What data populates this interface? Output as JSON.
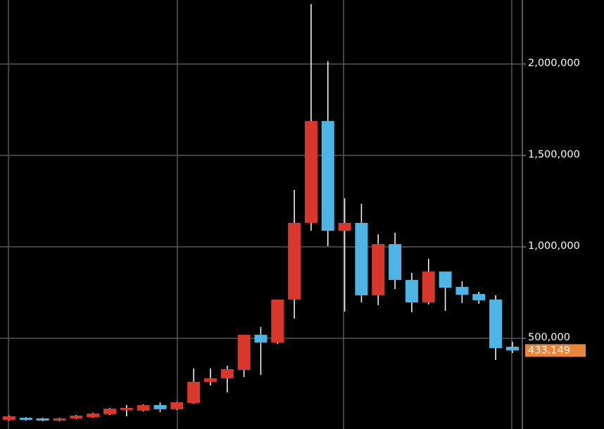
{
  "chart_data": {
    "type": "candlestick",
    "open": [
      54000,
      65000,
      62000,
      50000,
      62000,
      69000,
      85000,
      108000,
      104000,
      135000,
      112000,
      146000,
      262000,
      281000,
      327000,
      519000,
      477000,
      712000,
      1131000,
      1688000,
      1088000,
      1131000,
      735000,
      1015000,
      819000,
      696000,
      865000,
      781000,
      742000,
      712000,
      454000
    ],
    "high": [
      77000,
      69000,
      65000,
      65000,
      81000,
      92000,
      119000,
      135000,
      138000,
      150000,
      154000,
      335000,
      335000,
      350000,
      519000,
      562000,
      712000,
      1311000,
      2327000,
      2015000,
      1265000,
      1235000,
      1069000,
      1077000,
      858000,
      935000,
      865000,
      812000,
      754000,
      735000,
      481000
    ],
    "low": [
      50000,
      50000,
      46000,
      46000,
      58000,
      65000,
      81000,
      73000,
      100000,
      96000,
      108000,
      142000,
      242000,
      204000,
      288000,
      300000,
      469000,
      608000,
      1088000,
      1004000,
      646000,
      696000,
      681000,
      769000,
      642000,
      685000,
      650000,
      692000,
      689000,
      381000,
      419000
    ],
    "close": [
      73000,
      54000,
      50000,
      62000,
      77000,
      88000,
      115000,
      119000,
      135000,
      112000,
      150000,
      262000,
      281000,
      331000,
      519000,
      477000,
      712000,
      1131000,
      1688000,
      1088000,
      1131000,
      735000,
      1015000,
      819000,
      696000,
      865000,
      777000,
      738000,
      708000,
      446000,
      433149
    ],
    "up_color": "#d9362c",
    "down_color": "#4eb4e4",
    "ylim": [
      0,
      2350000
    ],
    "yticks": [
      {
        "value": 500000,
        "label": "500,000"
      },
      {
        "value": 1000000,
        "label": "1,000,000"
      },
      {
        "value": 1500000,
        "label": "1,500,000"
      },
      {
        "value": 2000000,
        "label": "2,000,000"
      }
    ],
    "grid": true,
    "last_price": {
      "value": 433149,
      "label": "433,149",
      "color": "#e8873a"
    }
  }
}
